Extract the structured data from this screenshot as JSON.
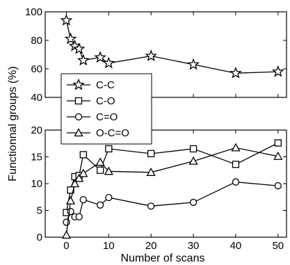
{
  "chart_data": {
    "type": "line",
    "xlabel": "Number of scans",
    "ylabel": "Functionnal groups (%)",
    "x_ticks": [
      0,
      10,
      20,
      30,
      40,
      50
    ],
    "xlim": [
      -5,
      52
    ],
    "broken_y_axis": true,
    "upper_panel": {
      "ylim": [
        40,
        100
      ],
      "y_ticks": [
        40,
        60,
        80,
        100
      ]
    },
    "lower_panel": {
      "ylim": [
        0,
        20
      ],
      "y_ticks": [
        0,
        5,
        10,
        15,
        20
      ]
    },
    "legend": {
      "position": "left-middle",
      "entries": [
        "C-C",
        "C-O",
        "C=O",
        "O-C=O"
      ]
    },
    "series": [
      {
        "name": "C-C",
        "marker": "star",
        "panel": "upper",
        "x": [
          0,
          1,
          2,
          3,
          4,
          8,
          10,
          20,
          30,
          40,
          50
        ],
        "y": [
          94,
          81,
          76,
          74,
          66,
          68,
          64,
          69,
          63,
          57,
          58
        ]
      },
      {
        "name": "C-O",
        "marker": "square",
        "panel": "lower",
        "x": [
          0,
          1,
          2,
          3,
          4,
          8,
          10,
          20,
          30,
          40,
          50
        ],
        "y": [
          4.6,
          8.8,
          11.3,
          11.5,
          15.4,
          12.5,
          16.5,
          15.6,
          16.5,
          13.6,
          17.6
        ]
      },
      {
        "name": "C=O",
        "marker": "circle",
        "panel": "lower",
        "x": [
          0,
          1,
          2,
          3,
          4,
          8,
          10,
          20,
          30,
          40,
          50
        ],
        "y": [
          2.8,
          4.8,
          3.8,
          3.8,
          7.0,
          6.0,
          7.4,
          5.8,
          6.5,
          10.3,
          9.6
        ]
      },
      {
        "name": "O-C=O",
        "marker": "triangle",
        "panel": "lower",
        "x": [
          0,
          1,
          2,
          3,
          4,
          8,
          10,
          20,
          30,
          40,
          50
        ],
        "y": [
          0.4,
          6.8,
          10.0,
          11.0,
          11.9,
          14.0,
          12.3,
          12.1,
          14.2,
          16.7,
          15.1
        ]
      }
    ]
  }
}
